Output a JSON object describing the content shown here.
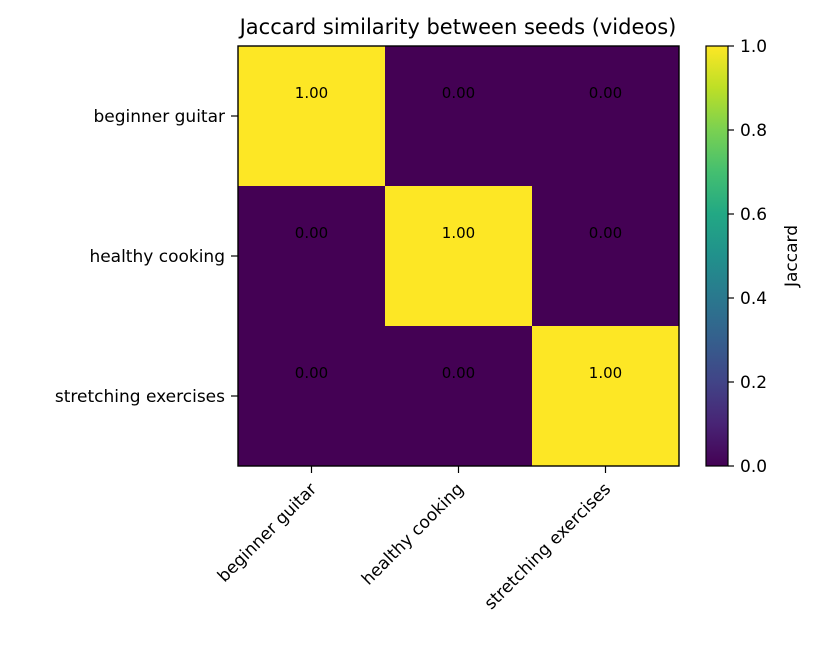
{
  "chart_data": {
    "type": "heatmap",
    "title": "Jaccard similarity between seeds (videos)",
    "row_labels": [
      "beginner guitar",
      "healthy cooking",
      "stretching exercises"
    ],
    "col_labels": [
      "beginner guitar",
      "healthy cooking",
      "stretching exercises"
    ],
    "values": [
      [
        1.0,
        0.0,
        0.0
      ],
      [
        0.0,
        1.0,
        0.0
      ],
      [
        0.0,
        0.0,
        1.0
      ]
    ],
    "cell_labels": [
      [
        "1.00",
        "0.00",
        "0.00"
      ],
      [
        "0.00",
        "1.00",
        "0.00"
      ],
      [
        "0.00",
        "0.00",
        "1.00"
      ]
    ],
    "colorbar": {
      "label": "Jaccard",
      "range": [
        0.0,
        1.0
      ],
      "ticks": [
        0.0,
        0.2,
        0.4,
        0.6,
        0.8,
        1.0
      ],
      "tick_labels": [
        "0.0",
        "0.2",
        "0.4",
        "0.6",
        "0.8",
        "1.0"
      ],
      "colormap": "viridis"
    },
    "colors": {
      "low": "#440154",
      "high": "#fde725"
    },
    "grid": false
  }
}
